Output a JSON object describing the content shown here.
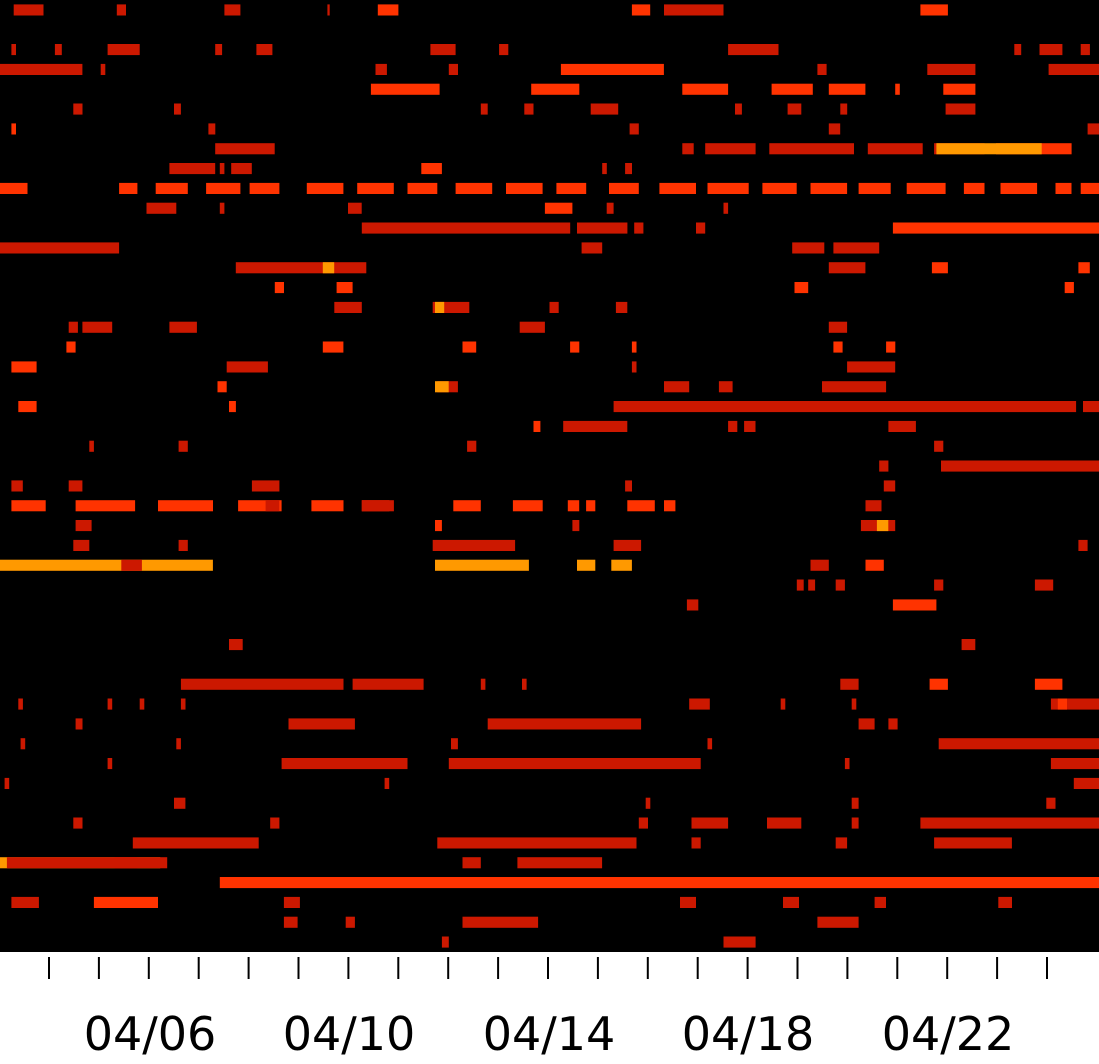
{
  "chart_data": {
    "type": "heatmap",
    "title": "",
    "xlabel": "",
    "ylabel": "",
    "x_tick_labels": [
      "04/06",
      "04/10",
      "04/14",
      "04/18",
      "04/22"
    ],
    "days": 22,
    "rows": 48,
    "grid": false,
    "legend": "none",
    "colors": {
      "background": "#000000",
      "low": "#cc1800",
      "mid": "#ff3300",
      "high": "#ff9900",
      "axis": "#000000",
      "page": "#ffffff"
    },
    "segments": [
      [
        0,
        0.6,
        1.9,
        0.4
      ],
      [
        0,
        5.1,
        5.5,
        0.4
      ],
      [
        0,
        9.8,
        10.5,
        0.4
      ],
      [
        0,
        14.3,
        14.4,
        0.4
      ],
      [
        0,
        16.5,
        17.4,
        0.5
      ],
      [
        0,
        27.6,
        28.4,
        0.5
      ],
      [
        0,
        29.0,
        31.6,
        0.4
      ],
      [
        0,
        40.2,
        41.4,
        0.5
      ],
      [
        2,
        0.5,
        0.7,
        0.4
      ],
      [
        2,
        2.4,
        2.7,
        0.4
      ],
      [
        2,
        4.7,
        6.1,
        0.4
      ],
      [
        2,
        9.4,
        9.7,
        0.4
      ],
      [
        2,
        11.2,
        11.9,
        0.4
      ],
      [
        2,
        18.8,
        19.9,
        0.4
      ],
      [
        2,
        21.8,
        22.2,
        0.4
      ],
      [
        2,
        31.8,
        34.0,
        0.4
      ],
      [
        2,
        44.3,
        44.6,
        0.4
      ],
      [
        2,
        45.4,
        46.4,
        0.4
      ],
      [
        2,
        47.2,
        47.6,
        0.4
      ],
      [
        3,
        0.0,
        3.6,
        0.4
      ],
      [
        3,
        4.4,
        4.6,
        0.4
      ],
      [
        3,
        16.4,
        16.9,
        0.4
      ],
      [
        3,
        19.6,
        20.0,
        0.4
      ],
      [
        3,
        24.5,
        29.0,
        0.5
      ],
      [
        3,
        35.7,
        36.1,
        0.4
      ],
      [
        3,
        40.5,
        42.6,
        0.4
      ],
      [
        3,
        45.8,
        48.0,
        0.4
      ],
      [
        4,
        16.2,
        19.2,
        0.6
      ],
      [
        4,
        23.2,
        25.3,
        0.6
      ],
      [
        4,
        29.8,
        31.8,
        0.6
      ],
      [
        4,
        33.7,
        35.5,
        0.6
      ],
      [
        4,
        36.2,
        37.8,
        0.6
      ],
      [
        4,
        39.1,
        39.3,
        0.6
      ],
      [
        4,
        41.2,
        42.6,
        0.6
      ],
      [
        5,
        3.2,
        3.6,
        0.4
      ],
      [
        5,
        7.6,
        7.9,
        0.4
      ],
      [
        5,
        21.0,
        21.3,
        0.4
      ],
      [
        5,
        22.9,
        23.3,
        0.4
      ],
      [
        5,
        25.8,
        27.0,
        0.4
      ],
      [
        5,
        32.1,
        32.4,
        0.4
      ],
      [
        5,
        34.4,
        35.0,
        0.4
      ],
      [
        5,
        36.7,
        37.0,
        0.4
      ],
      [
        5,
        41.3,
        42.6,
        0.4
      ],
      [
        6,
        0.5,
        0.7,
        0.5
      ],
      [
        6,
        9.1,
        9.4,
        0.4
      ],
      [
        6,
        27.5,
        27.9,
        0.4
      ],
      [
        6,
        36.2,
        36.7,
        0.4
      ],
      [
        6,
        47.5,
        48.0,
        0.4
      ],
      [
        7,
        9.4,
        12.0,
        0.4
      ],
      [
        7,
        29.8,
        30.3,
        0.4
      ],
      [
        7,
        30.8,
        33.0,
        0.4
      ],
      [
        7,
        33.6,
        37.3,
        0.4
      ],
      [
        7,
        37.9,
        40.3,
        0.4
      ],
      [
        7,
        40.8,
        43.0,
        0.4
      ],
      [
        7,
        43.5,
        46.8,
        0.5
      ],
      [
        7,
        40.9,
        45.5,
        0.7
      ],
      [
        8,
        7.4,
        9.4,
        0.4
      ],
      [
        8,
        9.6,
        9.8,
        0.4
      ],
      [
        8,
        10.1,
        11.0,
        0.4
      ],
      [
        8,
        18.4,
        19.3,
        0.5
      ],
      [
        8,
        26.3,
        26.5,
        0.4
      ],
      [
        8,
        27.3,
        27.6,
        0.4
      ],
      [
        9,
        0.0,
        1.2,
        0.6
      ],
      [
        9,
        5.2,
        6.0,
        0.6
      ],
      [
        9,
        6.8,
        8.2,
        0.6
      ],
      [
        9,
        9.0,
        10.5,
        0.6
      ],
      [
        9,
        10.9,
        12.2,
        0.6
      ],
      [
        9,
        13.4,
        15.0,
        0.6
      ],
      [
        9,
        15.6,
        17.2,
        0.6
      ],
      [
        9,
        17.8,
        19.1,
        0.6
      ],
      [
        9,
        19.9,
        21.5,
        0.6
      ],
      [
        9,
        22.1,
        23.7,
        0.6
      ],
      [
        9,
        24.3,
        25.6,
        0.6
      ],
      [
        9,
        26.6,
        27.9,
        0.6
      ],
      [
        9,
        28.8,
        30.4,
        0.6
      ],
      [
        9,
        30.9,
        32.7,
        0.6
      ],
      [
        9,
        33.3,
        34.8,
        0.6
      ],
      [
        9,
        35.4,
        37.0,
        0.6
      ],
      [
        9,
        37.5,
        38.9,
        0.6
      ],
      [
        9,
        39.6,
        41.3,
        0.6
      ],
      [
        9,
        42.1,
        43.0,
        0.6
      ],
      [
        9,
        43.7,
        45.3,
        0.6
      ],
      [
        9,
        46.1,
        46.8,
        0.6
      ],
      [
        9,
        47.2,
        48.0,
        0.6
      ],
      [
        10,
        6.4,
        7.7,
        0.4
      ],
      [
        10,
        9.6,
        9.8,
        0.4
      ],
      [
        10,
        15.2,
        15.8,
        0.4
      ],
      [
        10,
        23.8,
        25.0,
        0.5
      ],
      [
        10,
        26.5,
        26.8,
        0.4
      ],
      [
        10,
        31.6,
        31.8,
        0.4
      ],
      [
        11,
        15.8,
        24.9,
        0.4
      ],
      [
        11,
        25.2,
        27.4,
        0.4
      ],
      [
        11,
        27.7,
        28.1,
        0.4
      ],
      [
        11,
        30.4,
        30.8,
        0.4
      ],
      [
        11,
        39.0,
        48.0,
        0.6
      ],
      [
        12,
        0.0,
        5.2,
        0.4
      ],
      [
        12,
        25.4,
        26.3,
        0.4
      ],
      [
        12,
        34.6,
        36.0,
        0.4
      ],
      [
        12,
        36.4,
        38.4,
        0.4
      ],
      [
        13,
        10.3,
        16.0,
        0.4
      ],
      [
        13,
        14.1,
        14.6,
        0.8
      ],
      [
        13,
        36.2,
        37.8,
        0.4
      ],
      [
        13,
        40.7,
        41.4,
        0.6
      ],
      [
        13,
        47.1,
        47.6,
        0.5
      ],
      [
        14,
        12.0,
        12.4,
        0.5
      ],
      [
        14,
        34.7,
        35.3,
        0.5
      ],
      [
        14,
        46.5,
        46.9,
        0.5
      ],
      [
        14,
        14.7,
        15.4,
        0.5
      ],
      [
        15,
        14.6,
        15.8,
        0.4
      ],
      [
        15,
        18.9,
        20.5,
        0.4
      ],
      [
        15,
        24.0,
        24.4,
        0.4
      ],
      [
        15,
        26.9,
        27.4,
        0.4
      ],
      [
        15,
        19.0,
        19.4,
        0.7
      ],
      [
        16,
        3.0,
        3.4,
        0.4
      ],
      [
        16,
        3.6,
        4.9,
        0.4
      ],
      [
        16,
        7.4,
        8.6,
        0.4
      ],
      [
        16,
        22.7,
        23.8,
        0.4
      ],
      [
        16,
        36.2,
        37.0,
        0.4
      ],
      [
        17,
        2.9,
        3.3,
        0.6
      ],
      [
        17,
        14.1,
        15.0,
        0.6
      ],
      [
        17,
        20.2,
        20.8,
        0.6
      ],
      [
        17,
        24.9,
        25.3,
        0.6
      ],
      [
        17,
        27.6,
        27.8,
        0.6
      ],
      [
        17,
        36.4,
        36.8,
        0.6
      ],
      [
        17,
        38.7,
        39.1,
        0.6
      ],
      [
        18,
        0.5,
        1.6,
        0.5
      ],
      [
        18,
        9.9,
        11.7,
        0.4
      ],
      [
        18,
        27.6,
        27.8,
        0.4
      ],
      [
        18,
        37.0,
        39.1,
        0.4
      ],
      [
        19,
        9.5,
        9.9,
        0.5
      ],
      [
        19,
        19.1,
        20.0,
        0.4
      ],
      [
        19,
        29.0,
        30.1,
        0.4
      ],
      [
        19,
        31.4,
        32.0,
        0.4
      ],
      [
        19,
        35.9,
        38.7,
        0.4
      ],
      [
        19,
        19.0,
        19.6,
        0.7
      ],
      [
        20,
        0.8,
        1.6,
        0.5
      ],
      [
        20,
        10.0,
        10.3,
        0.5
      ],
      [
        20,
        26.8,
        47.0,
        0.4
      ],
      [
        20,
        47.3,
        48.0,
        0.4
      ],
      [
        21,
        23.3,
        23.6,
        0.5
      ],
      [
        21,
        24.6,
        27.4,
        0.4
      ],
      [
        21,
        31.8,
        32.2,
        0.4
      ],
      [
        21,
        32.5,
        33.0,
        0.4
      ],
      [
        21,
        38.8,
        40.0,
        0.4
      ],
      [
        22,
        3.9,
        4.1,
        0.4
      ],
      [
        22,
        7.8,
        8.2,
        0.4
      ],
      [
        22,
        20.4,
        20.8,
        0.4
      ],
      [
        22,
        40.8,
        41.2,
        0.4
      ],
      [
        23,
        41.1,
        48.0,
        0.4
      ],
      [
        23,
        38.4,
        38.8,
        0.4
      ],
      [
        24,
        0.5,
        1.0,
        0.4
      ],
      [
        24,
        3.0,
        3.6,
        0.4
      ],
      [
        24,
        11.0,
        12.2,
        0.4
      ],
      [
        24,
        27.3,
        27.6,
        0.4
      ],
      [
        24,
        38.6,
        39.1,
        0.4
      ],
      [
        25,
        0.5,
        2.0,
        0.6
      ],
      [
        25,
        3.3,
        5.9,
        0.6
      ],
      [
        25,
        6.9,
        9.3,
        0.6
      ],
      [
        25,
        10.4,
        12.3,
        0.6
      ],
      [
        25,
        13.6,
        15.0,
        0.6
      ],
      [
        25,
        15.8,
        17.0,
        0.6
      ],
      [
        25,
        19.8,
        21.0,
        0.6
      ],
      [
        25,
        22.4,
        23.7,
        0.6
      ],
      [
        25,
        24.8,
        25.3,
        0.6
      ],
      [
        25,
        25.6,
        26.0,
        0.6
      ],
      [
        25,
        27.4,
        28.6,
        0.6
      ],
      [
        25,
        29.0,
        29.5,
        0.6
      ],
      [
        25,
        11.6,
        12.2,
        0.4
      ],
      [
        25,
        15.8,
        17.2,
        0.4
      ],
      [
        25,
        37.8,
        38.5,
        0.4
      ],
      [
        26,
        3.3,
        4.0,
        0.4
      ],
      [
        26,
        19.0,
        19.3,
        0.6
      ],
      [
        26,
        25.0,
        25.3,
        0.4
      ],
      [
        26,
        37.6,
        39.1,
        0.4
      ],
      [
        26,
        38.3,
        38.8,
        0.7
      ],
      [
        27,
        3.2,
        3.9,
        0.4
      ],
      [
        27,
        7.8,
        8.2,
        0.4
      ],
      [
        27,
        18.9,
        22.5,
        0.4
      ],
      [
        27,
        26.8,
        28.0,
        0.4
      ],
      [
        27,
        47.1,
        47.5,
        0.4
      ],
      [
        28,
        0.0,
        9.3,
        0.7
      ],
      [
        28,
        19.0,
        23.1,
        0.7
      ],
      [
        28,
        25.2,
        26.0,
        0.7
      ],
      [
        28,
        26.7,
        27.6,
        0.7
      ],
      [
        28,
        35.4,
        36.2,
        0.4
      ],
      [
        28,
        37.8,
        38.6,
        0.5
      ],
      [
        28,
        5.3,
        6.2,
        0.4
      ],
      [
        29,
        34.8,
        35.1,
        0.4
      ],
      [
        29,
        35.3,
        35.6,
        0.4
      ],
      [
        29,
        36.5,
        36.9,
        0.4
      ],
      [
        29,
        40.8,
        41.2,
        0.4
      ],
      [
        29,
        45.2,
        46.0,
        0.4
      ],
      [
        30,
        30.0,
        30.5,
        0.4
      ],
      [
        30,
        39.0,
        40.9,
        0.5
      ],
      [
        32,
        10.0,
        10.6,
        0.4
      ],
      [
        32,
        42.0,
        42.6,
        0.4
      ],
      [
        34,
        7.9,
        15.0,
        0.4
      ],
      [
        34,
        15.4,
        18.5,
        0.4
      ],
      [
        34,
        21.0,
        21.2,
        0.4
      ],
      [
        34,
        22.8,
        23.0,
        0.4
      ],
      [
        34,
        36.7,
        37.5,
        0.4
      ],
      [
        34,
        40.6,
        41.4,
        0.5
      ],
      [
        34,
        45.2,
        46.4,
        0.5
      ],
      [
        35,
        0.8,
        1.0,
        0.4
      ],
      [
        35,
        4.7,
        4.9,
        0.4
      ],
      [
        35,
        6.1,
        6.3,
        0.4
      ],
      [
        35,
        7.9,
        8.1,
        0.4
      ],
      [
        35,
        30.1,
        31.0,
        0.4
      ],
      [
        35,
        34.1,
        34.3,
        0.4
      ],
      [
        35,
        37.2,
        37.4,
        0.4
      ],
      [
        35,
        45.9,
        48.0,
        0.4
      ],
      [
        35,
        46.2,
        46.6,
        0.6
      ],
      [
        36,
        3.3,
        3.6,
        0.4
      ],
      [
        36,
        12.6,
        15.5,
        0.4
      ],
      [
        36,
        21.3,
        28.0,
        0.4
      ],
      [
        36,
        37.5,
        38.2,
        0.4
      ],
      [
        36,
        38.8,
        39.2,
        0.4
      ],
      [
        37,
        0.9,
        1.1,
        0.4
      ],
      [
        37,
        7.7,
        7.9,
        0.4
      ],
      [
        37,
        19.7,
        20.0,
        0.4
      ],
      [
        37,
        30.9,
        31.1,
        0.4
      ],
      [
        37,
        41.0,
        48.0,
        0.4
      ],
      [
        38,
        4.7,
        4.9,
        0.4
      ],
      [
        38,
        12.3,
        17.8,
        0.4
      ],
      [
        38,
        19.6,
        30.6,
        0.4
      ],
      [
        38,
        36.9,
        37.1,
        0.4
      ],
      [
        38,
        45.9,
        48.0,
        0.4
      ],
      [
        39,
        0.2,
        0.4,
        0.4
      ],
      [
        39,
        16.8,
        17.0,
        0.4
      ],
      [
        39,
        46.9,
        48.0,
        0.4
      ],
      [
        40,
        7.6,
        8.1,
        0.4
      ],
      [
        40,
        28.2,
        28.4,
        0.4
      ],
      [
        40,
        37.2,
        37.5,
        0.4
      ],
      [
        40,
        45.7,
        46.1,
        0.4
      ],
      [
        41,
        3.2,
        3.6,
        0.4
      ],
      [
        41,
        11.8,
        12.2,
        0.4
      ],
      [
        41,
        27.9,
        28.3,
        0.4
      ],
      [
        41,
        30.2,
        31.8,
        0.4
      ],
      [
        41,
        33.5,
        35.0,
        0.4
      ],
      [
        41,
        37.2,
        37.5,
        0.4
      ],
      [
        41,
        40.2,
        48.0,
        0.4
      ],
      [
        42,
        5.8,
        11.3,
        0.4
      ],
      [
        42,
        19.1,
        27.8,
        0.4
      ],
      [
        42,
        36.5,
        37.0,
        0.4
      ],
      [
        42,
        40.8,
        44.2,
        0.4
      ],
      [
        42,
        30.2,
        30.6,
        0.4
      ],
      [
        43,
        0.0,
        7.0,
        0.7
      ],
      [
        43,
        20.2,
        21.0,
        0.4
      ],
      [
        43,
        22.6,
        26.3,
        0.4
      ],
      [
        43,
        0.3,
        6.0,
        0.4
      ],
      [
        43,
        5.0,
        7.3,
        0.4
      ],
      [
        44,
        9.6,
        48.0,
        0.6
      ],
      [
        45,
        0.5,
        1.7,
        0.4
      ],
      [
        45,
        4.1,
        6.9,
        0.5
      ],
      [
        45,
        12.4,
        13.1,
        0.4
      ],
      [
        45,
        29.7,
        30.4,
        0.4
      ],
      [
        45,
        34.2,
        34.9,
        0.4
      ],
      [
        45,
        38.2,
        38.7,
        0.4
      ],
      [
        45,
        43.6,
        44.2,
        0.4
      ],
      [
        46,
        12.4,
        13.0,
        0.4
      ],
      [
        46,
        15.1,
        15.5,
        0.4
      ],
      [
        46,
        20.2,
        23.5,
        0.4
      ],
      [
        46,
        35.7,
        37.5,
        0.4
      ],
      [
        47,
        19.3,
        19.6,
        0.4
      ],
      [
        47,
        31.6,
        33.0,
        0.4
      ]
    ]
  }
}
